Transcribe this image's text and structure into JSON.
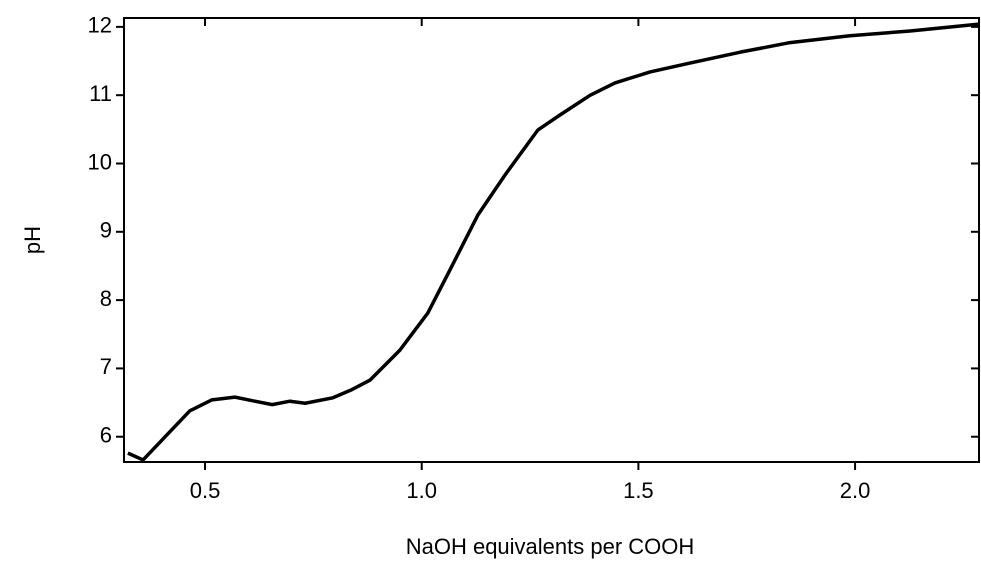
{
  "chart_data": {
    "type": "line",
    "xlabel": "NaOH equivalents per COOH",
    "ylabel": "pH",
    "x": [
      0.322,
      0.357,
      0.408,
      0.465,
      0.516,
      0.569,
      0.615,
      0.655,
      0.696,
      0.731,
      0.795,
      0.839,
      0.881,
      0.95,
      1.014,
      1.065,
      1.13,
      1.192,
      1.268,
      1.319,
      1.389,
      1.446,
      1.527,
      1.619,
      1.735,
      1.85,
      1.988,
      2.127,
      2.286
    ],
    "values": [
      5.76,
      5.66,
      6.0,
      6.38,
      6.54,
      6.58,
      6.52,
      6.47,
      6.52,
      6.49,
      6.57,
      6.69,
      6.83,
      7.27,
      7.81,
      8.44,
      9.25,
      9.83,
      10.49,
      10.71,
      11.0,
      11.18,
      11.34,
      11.47,
      11.63,
      11.77,
      11.87,
      11.94,
      12.04
    ],
    "color": "#000000",
    "xlim": [
      0.313,
      2.286
    ],
    "ylim": [
      5.63,
      12.13
    ],
    "xticks": [
      0.5,
      {
        "value": 1.0,
        "label": "1.0"
      },
      1.5,
      {
        "value": 2.0,
        "label": "2.0"
      }
    ],
    "yticks": [
      6,
      7,
      8,
      9,
      10,
      11,
      12
    ]
  }
}
